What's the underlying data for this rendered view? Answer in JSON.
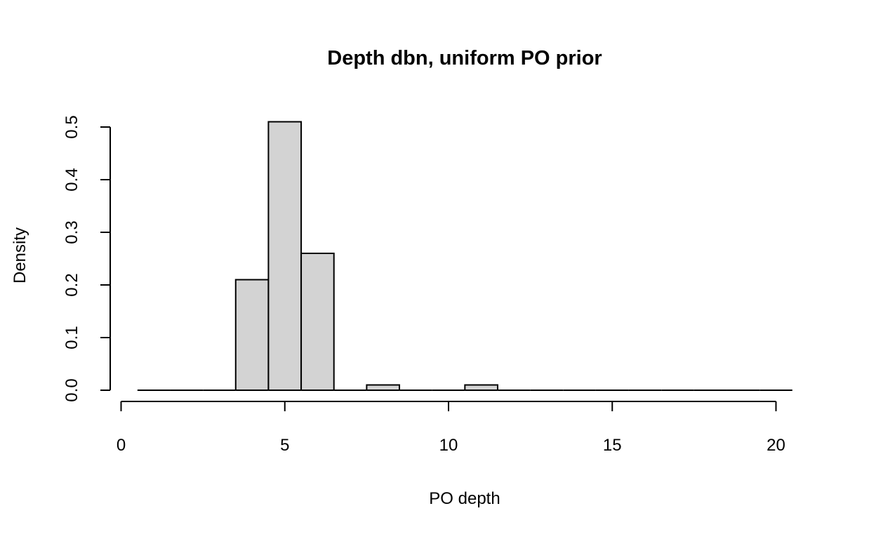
{
  "chart_data": {
    "type": "bar",
    "title": "Depth dbn, uniform PO prior",
    "xlabel": "PO depth",
    "ylabel": "Density",
    "bins": [
      [
        0.5,
        1.5
      ],
      [
        1.5,
        2.5
      ],
      [
        2.5,
        3.5
      ],
      [
        3.5,
        4.5
      ],
      [
        4.5,
        5.5
      ],
      [
        5.5,
        6.5
      ],
      [
        6.5,
        7.5
      ],
      [
        7.5,
        8.5
      ],
      [
        8.5,
        9.5
      ],
      [
        9.5,
        10.5
      ],
      [
        10.5,
        11.5
      ],
      [
        11.5,
        12.5
      ],
      [
        12.5,
        13.5
      ],
      [
        13.5,
        14.5
      ],
      [
        14.5,
        15.5
      ],
      [
        15.5,
        16.5
      ],
      [
        16.5,
        17.5
      ],
      [
        17.5,
        18.5
      ],
      [
        18.5,
        19.5
      ],
      [
        19.5,
        20.5
      ]
    ],
    "values": [
      0,
      0,
      0,
      0.21,
      0.51,
      0.26,
      0,
      0.01,
      0,
      0,
      0.01,
      0,
      0,
      0,
      0,
      0,
      0,
      0,
      0,
      0
    ],
    "xlim": [
      0,
      20
    ],
    "ylim": [
      0,
      0.5
    ],
    "xticks": [
      0,
      5,
      10,
      15,
      20
    ],
    "yticks": [
      0.0,
      0.1,
      0.2,
      0.3,
      0.4,
      0.5
    ],
    "xtick_labels": [
      "0",
      "5",
      "10",
      "15",
      "20"
    ],
    "ytick_labels": [
      "0.0",
      "0.1",
      "0.2",
      "0.3",
      "0.4",
      "0.5"
    ],
    "grid": false,
    "legend": "none",
    "colors": {
      "bar_fill": "#d3d3d3",
      "bar_stroke": "#000000"
    }
  }
}
